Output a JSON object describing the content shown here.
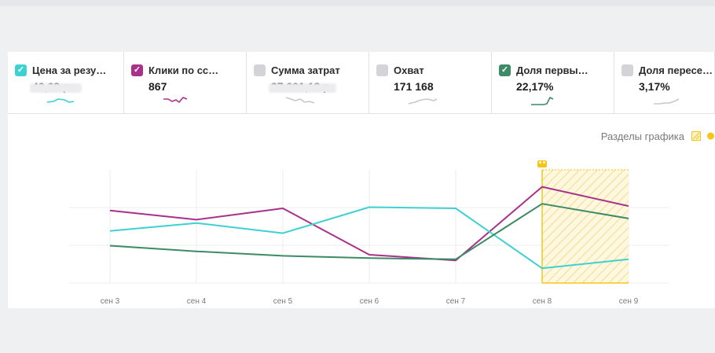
{
  "metrics": [
    {
      "label": "Цена за резу…",
      "value": "42,68 р.",
      "checked": true,
      "color": "#3fd1d2",
      "spark_color": "#3fd1d2"
    },
    {
      "label": "Клики по сс…",
      "value": "867",
      "checked": true,
      "color": "#a9318a",
      "spark_color": "#a9318a"
    },
    {
      "label": "Сумма затрат",
      "value": "37 001,18 р.",
      "checked": false,
      "color": "#d4d4d8",
      "spark_color": "#c8c8cc"
    },
    {
      "label": "Охват",
      "value": "171 168",
      "checked": false,
      "color": "#d4d4d8",
      "spark_color": "#c8c8cc"
    },
    {
      "label": "Доля первы…",
      "value": "22,17%",
      "checked": true,
      "color": "#3c8a66",
      "spark_color": "#3c8a66"
    },
    {
      "label": "Доля пересе…",
      "value": "3,17%",
      "checked": false,
      "color": "#d4d4d8",
      "spark_color": "#c8c8cc"
    }
  ],
  "chart_sections": {
    "label": "Разделы графика",
    "highlight_color": "#f5c518"
  },
  "chart_data": {
    "type": "line",
    "categories": [
      "сен 3",
      "сен 4",
      "сен 5",
      "сен 6",
      "сен 7",
      "сен 8",
      "сен 9"
    ],
    "grid": true,
    "highlighted_category": "сен 8",
    "series": [
      {
        "color": "#a9318a",
        "values": [
          0.64,
          0.56,
          0.66,
          0.25,
          0.2,
          0.85,
          0.68
        ]
      },
      {
        "color": "#3fd1d2",
        "values": [
          0.46,
          0.53,
          0.44,
          0.67,
          0.66,
          0.13,
          0.21
        ]
      },
      {
        "color": "#3c8a66",
        "values": [
          0.33,
          0.28,
          0.24,
          0.22,
          0.21,
          0.7,
          0.57
        ]
      }
    ]
  }
}
